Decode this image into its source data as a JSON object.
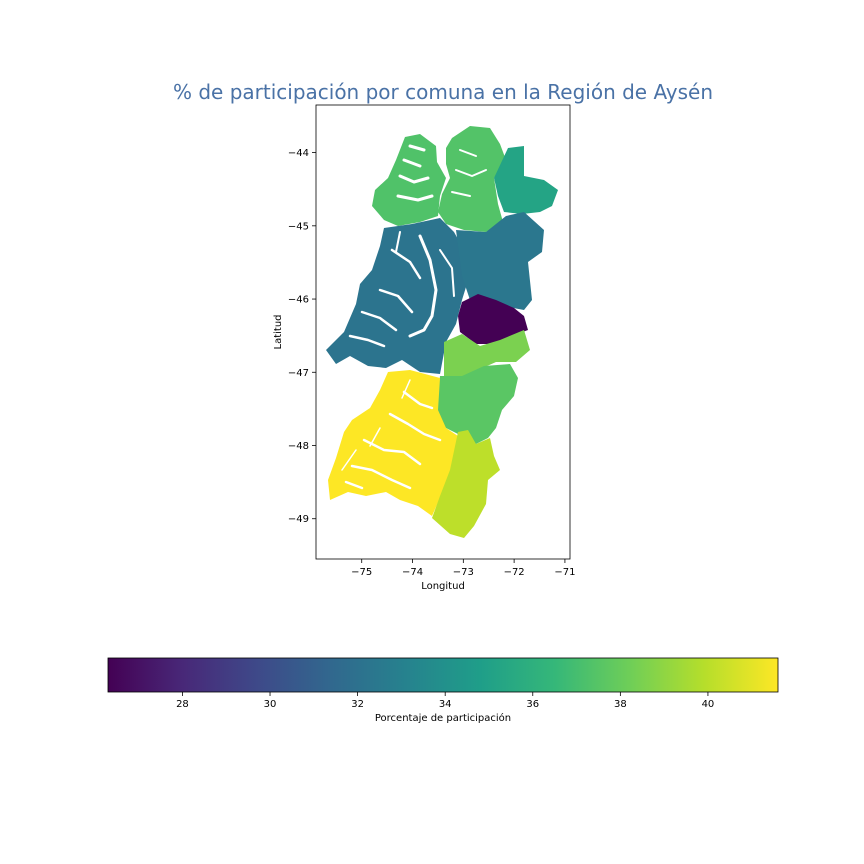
{
  "chart_data": {
    "type": "choropleth",
    "title": "% de participación por comuna en la Región de Aysén",
    "xlabel": "Longitud",
    "ylabel": "Latitud",
    "xlim": [
      -75.9,
      -70.9
    ],
    "ylim": [
      -49.55,
      -43.35
    ],
    "x_ticks": [
      -75,
      -74,
      -73,
      -72,
      -71
    ],
    "x_tick_labels": [
      "−75",
      "−74",
      "−73",
      "−72",
      "−71"
    ],
    "y_ticks": [
      -44,
      -45,
      -46,
      -47,
      -48,
      -49
    ],
    "y_tick_labels": [
      "−44",
      "−45",
      "−46",
      "−47",
      "−48",
      "−49"
    ],
    "colorbar": {
      "label": "Porcentaje de participación",
      "range": [
        26.3,
        41.6
      ],
      "ticks": [
        28,
        30,
        32,
        34,
        36,
        38,
        40
      ],
      "tick_labels": [
        "28",
        "30",
        "32",
        "34",
        "36",
        "38",
        "40"
      ],
      "colormap": "viridis",
      "stops": [
        "#440154",
        "#482878",
        "#3e4989",
        "#31688e",
        "#26828e",
        "#1f9e89",
        "#35b779",
        "#6ece58",
        "#b5de2b",
        "#fde725"
      ]
    },
    "regions": [
      {
        "id": "guaitecas",
        "value": 37.3
      },
      {
        "id": "lago-verde",
        "value": 37.4
      },
      {
        "id": "lago-verde-east",
        "value": 35.2
      },
      {
        "id": "aysen",
        "value": 32.2
      },
      {
        "id": "coyhaique",
        "value": 32.4
      },
      {
        "id": "rio-ibanez",
        "value": 26.3
      },
      {
        "id": "chile-chico",
        "value": 38.5
      },
      {
        "id": "cochrane",
        "value": 37.6
      },
      {
        "id": "tortel",
        "value": 41.6
      },
      {
        "id": "ohiggins",
        "value": 40.1
      }
    ]
  }
}
